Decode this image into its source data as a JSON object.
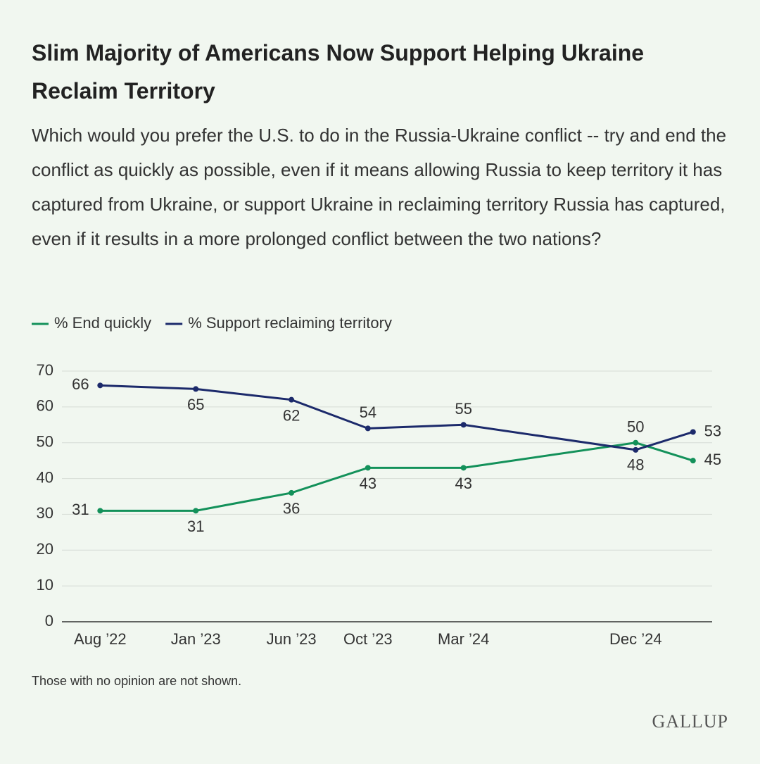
{
  "chart_data": {
    "type": "line",
    "title": "Slim Majority of Americans Now Support Helping Ukraine Reclaim Territory",
    "subtitle": "Which would you prefer the U.S. to do in the Russia-Ukraine conflict -- try and end the conflict as quickly as possible, even if it means allowing Russia to keep territory it has captured from Ukraine, or support Ukraine in reclaiming territory Russia has captured, even if it results in a more prolonged conflict between the two nations?",
    "x": [
      "2022-08",
      "2023-01",
      "2023-06",
      "2023-10",
      "2024-03",
      "2024-12",
      "2025-03"
    ],
    "xlim": [
      "2022-06",
      "2025-04"
    ],
    "xticks": [
      {
        "value": "2022-08",
        "label": "Aug ’22"
      },
      {
        "value": "2023-01",
        "label": "Jan ’23"
      },
      {
        "value": "2023-06",
        "label": "Jun ’23"
      },
      {
        "value": "2023-10",
        "label": "Oct ’23"
      },
      {
        "value": "2024-03",
        "label": "Mar ’24"
      },
      {
        "value": "2024-12",
        "label": "Dec ’24"
      }
    ],
    "ylim": [
      0,
      70
    ],
    "yticks": [
      0,
      10,
      20,
      30,
      40,
      50,
      60,
      70
    ],
    "grid": true,
    "series": [
      {
        "name": "% End quickly",
        "color": "#13915a",
        "values": [
          31,
          31,
          36,
          43,
          43,
          50,
          45
        ]
      },
      {
        "name": "% Support reclaiming territory",
        "color": "#1c2a6b",
        "values": [
          66,
          65,
          62,
          54,
          55,
          48,
          53
        ]
      }
    ],
    "note": "Those with no opinion are not shown.",
    "source": "GALLUP"
  }
}
